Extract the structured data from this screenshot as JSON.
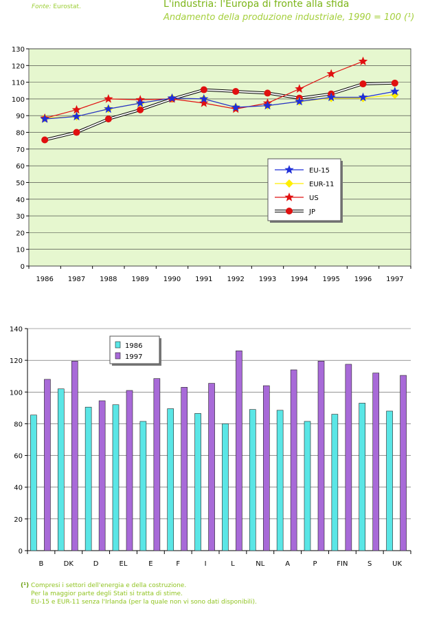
{
  "header": {
    "source_label": "Fonte:",
    "source_value": "Eurostat.",
    "title": "L'industria: l'Europa di fronte alla sfida",
    "subtitle": "Andamento della produzione industriale, 1990 = 100 (¹)"
  },
  "footnote": {
    "marker": "(¹)",
    "lines": [
      "Compresi i settori dell'energia e della costruzione.",
      "Per la maggior parte degli Stati si tratta di stime.",
      "EU-15 e EUR-11 senza l'Irlanda (per la quale non vi sono dati disponibili)."
    ]
  },
  "colors": {
    "plot_bg_line": "#e6f7cf",
    "grid": "#333333",
    "eu15": "#1f2fd8",
    "eur11": "#ffee00",
    "us": "#e01010",
    "jp": "#e01010",
    "bar_1986": "#5ae6e6",
    "bar_1997": "#a86ad8"
  },
  "chart_data": [
    {
      "type": "line",
      "x": [
        "1986",
        "1987",
        "1988",
        "1989",
        "1990",
        "1991",
        "1992",
        "1993",
        "1994",
        "1995",
        "1996",
        "1997"
      ],
      "ylim": [
        0,
        130
      ],
      "yticks": [
        "0",
        "10",
        "20",
        "30",
        "40",
        "50",
        "60",
        "70",
        "80",
        "90",
        "100",
        "110",
        "120",
        "130"
      ],
      "grid": true,
      "legend_position": "right-middle",
      "series": [
        {
          "name": "EU-15",
          "marker": "star",
          "values": [
            88,
            89.5,
            94,
            97.5,
            100.5,
            100,
            95,
            96,
            98.5,
            101,
            101,
            104.5
          ]
        },
        {
          "name": "EUR-11",
          "marker": "diamond",
          "values": [
            88.5,
            89.5,
            94,
            97.5,
            100.5,
            100,
            95,
            96,
            98.5,
            100.5,
            100.5,
            102.5
          ]
        },
        {
          "name": "US",
          "marker": "star",
          "values": [
            88.5,
            93.5,
            100,
            99.5,
            100,
            97.5,
            94,
            97.5,
            106,
            115,
            122.5,
            null
          ]
        },
        {
          "name": "JP",
          "marker": "circle",
          "values": [
            75.5,
            80,
            88,
            93.5,
            100,
            105.5,
            104.5,
            103.5,
            100.5,
            103,
            109,
            109.5
          ]
        }
      ]
    },
    {
      "type": "bar",
      "categories": [
        "B",
        "DK",
        "D",
        "EL",
        "E",
        "F",
        "I",
        "L",
        "NL",
        "A",
        "P",
        "FIN",
        "S",
        "UK"
      ],
      "ylim": [
        0,
        140
      ],
      "yticks": [
        "0",
        "20",
        "40",
        "60",
        "80",
        "100",
        "120",
        "140"
      ],
      "grid": true,
      "legend_position": "top-left",
      "series": [
        {
          "name": "1986",
          "values": [
            85.5,
            102,
            90.5,
            92,
            81.5,
            89.5,
            86.5,
            80,
            89,
            88.5,
            81.5,
            86,
            93,
            88
          ]
        },
        {
          "name": "1997",
          "values": [
            108,
            119.5,
            94.5,
            101,
            108.5,
            103,
            105.5,
            126,
            104,
            114,
            119.5,
            117.5,
            112,
            110.5
          ]
        }
      ]
    }
  ]
}
